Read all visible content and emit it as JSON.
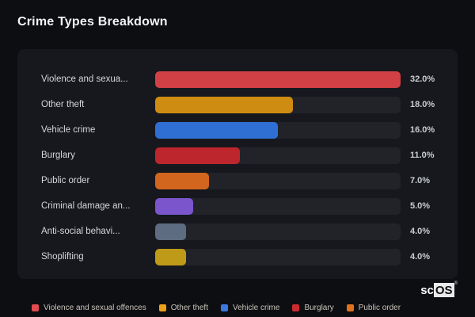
{
  "page": {
    "title": "Crime Types Breakdown"
  },
  "logo": {
    "prefix": "sc",
    "suffix": "OS",
    "registered": "®"
  },
  "chart_data": {
    "type": "bar",
    "orientation": "horizontal",
    "title": "Crime Types Breakdown",
    "max_value": 32,
    "categories": [
      "Violence and sexua...",
      "Other theft",
      "Vehicle crime",
      "Burglary",
      "Public order",
      "Criminal damage an...",
      "Anti-social behavi...",
      "Shoplifting"
    ],
    "values": [
      32.0,
      18.0,
      16.0,
      11.0,
      7.0,
      5.0,
      4.0,
      4.0
    ],
    "value_labels": [
      "32.0%",
      "18.0%",
      "16.0%",
      "11.0%",
      "7.0%",
      "5.0%",
      "4.0%",
      "4.0%"
    ],
    "colors": [
      "#d04045",
      "#cf8c12",
      "#2f6fd4",
      "#bd262c",
      "#d2661e",
      "#7a55cc",
      "#5d6c80",
      "#bf9a18"
    ],
    "track_color": "#212329",
    "grid": false,
    "legend_position": "bottom",
    "legend": [
      {
        "label": "Violence and sexual offences",
        "color": "#e14b50"
      },
      {
        "label": "Other theft",
        "color": "#eda018"
      },
      {
        "label": "Vehicle crime",
        "color": "#3a78e0"
      },
      {
        "label": "Burglary",
        "color": "#cb2a30"
      },
      {
        "label": "Public order",
        "color": "#e2711e"
      }
    ]
  }
}
